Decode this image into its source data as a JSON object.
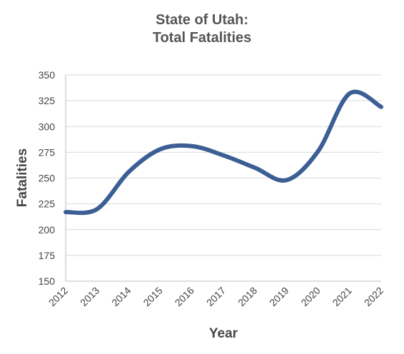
{
  "chart_data": {
    "type": "line",
    "title_lines": [
      "State of Utah:",
      "Total Fatalities"
    ],
    "xlabel": "Year",
    "ylabel": "Fatalities",
    "x": [
      "2012",
      "2013",
      "2014",
      "2015",
      "2016",
      "2017",
      "2018",
      "2019",
      "2020",
      "2021",
      "2022"
    ],
    "series": [
      {
        "values": [
          217,
          220,
          256,
          278,
          281,
          272,
          260,
          248,
          276,
          332,
          319
        ]
      }
    ],
    "ylim": [
      150,
      350
    ],
    "yticks": [
      150,
      175,
      200,
      225,
      250,
      275,
      300,
      325,
      350
    ],
    "grid": true,
    "legend": "none",
    "colors": {
      "line": "#3b5e94",
      "grid": "#d9d9d9",
      "axis": "#bfbfbf"
    }
  }
}
